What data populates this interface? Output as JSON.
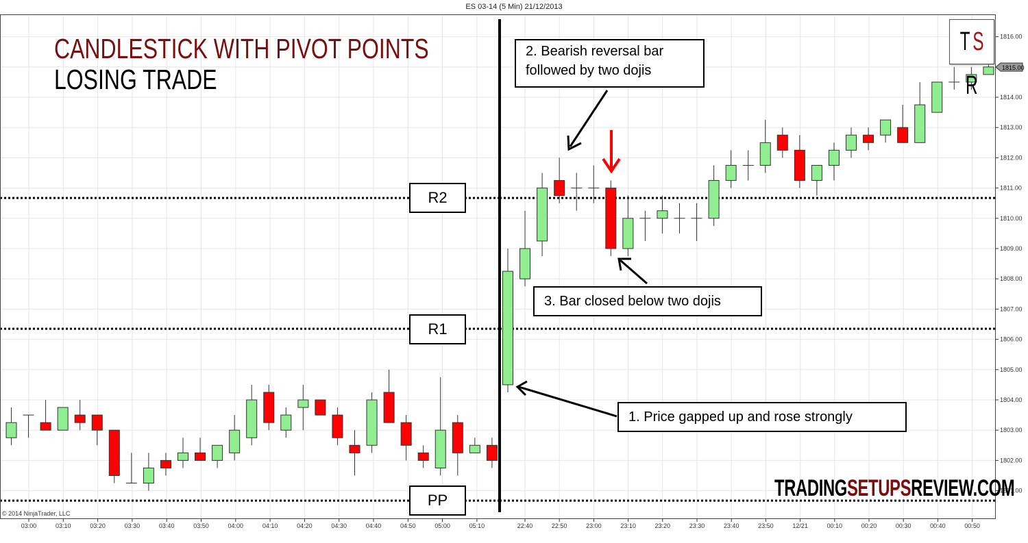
{
  "window": {
    "title": "ES 03-14 (5 Min)  21/12/2013"
  },
  "headline": {
    "line1": "CANDLESTICK WITH PIVOT POINTS",
    "line2": "LOSING TRADE"
  },
  "logo": {
    "t": "T",
    "s": "S",
    "r": "R"
  },
  "brand": {
    "part1": "TRADING",
    "part2": "SETUPS",
    "part3": "REVIEW.COM"
  },
  "copyright": "© 2014 NinjaTrader, LLC",
  "colors": {
    "up": "#90ee90",
    "down": "#ff0000",
    "accent": "#7a0d0d",
    "grid": "#e6e6e6"
  },
  "annotations": {
    "note1": "1. Price gapped up and rose strongly",
    "note2_line1": "2. Bearish reversal bar",
    "note2_line2": "followed by two dojis",
    "note3": "3. Bar closed below two dojis"
  },
  "levels": {
    "r2_label": "R2",
    "r1_label": "R1",
    "pp_label": "PP"
  },
  "chart_data": {
    "type": "candlestick",
    "title": "ES 03-14 (5 Min)  21/12/2013",
    "subtitle": "CANDLESTICK WITH PIVOT POINTS — LOSING TRADE",
    "xlabel": "",
    "ylabel": "",
    "ylim": [
      1800.2,
      1816.6
    ],
    "y_ticks": [
      1801,
      1802,
      1803,
      1804,
      1805,
      1806,
      1807,
      1808,
      1809,
      1810,
      1811,
      1812,
      1813,
      1814,
      1815,
      1816
    ],
    "x_ticks_session1": [
      "03:00",
      "03:10",
      "03:20",
      "03:30",
      "03:40",
      "03:50",
      "04:00",
      "04:10",
      "04:20",
      "04:30",
      "04:40",
      "04:50",
      "05:00",
      "05:10"
    ],
    "x_ticks_session2": [
      "22:40",
      "22:50",
      "23:00",
      "23:10",
      "23:20",
      "23:30",
      "23:40",
      "23:50",
      "12/21",
      "00:10",
      "00:20",
      "00:30",
      "00:40",
      "00:50"
    ],
    "last_price": "1815.00",
    "grid": true,
    "pivot_levels": {
      "R2": 1810.67,
      "R1": 1806.35,
      "PP": 1800.67
    },
    "session1": [
      [
        1802.75,
        1803.75,
        1802.5,
        1803.25
      ],
      [
        1803.5,
        1803.5,
        1802.75,
        1803.5
      ],
      [
        1803.25,
        1804.0,
        1803.0,
        1803.0
      ],
      [
        1803.0,
        1803.75,
        1803.0,
        1803.75
      ],
      [
        1803.5,
        1804.0,
        1803.0,
        1803.25
      ],
      [
        1803.5,
        1803.5,
        1802.5,
        1803.0
      ],
      [
        1803.0,
        1803.0,
        1801.25,
        1801.5
      ],
      [
        1801.25,
        1802.25,
        1801.25,
        1801.25
      ],
      [
        1801.25,
        1802.25,
        1801.0,
        1801.75
      ],
      [
        1802.0,
        1802.25,
        1801.5,
        1801.75
      ],
      [
        1802.0,
        1802.75,
        1801.75,
        1802.25
      ],
      [
        1802.25,
        1802.75,
        1802.0,
        1802.0
      ],
      [
        1802.0,
        1802.5,
        1801.75,
        1802.5
      ],
      [
        1802.25,
        1803.5,
        1802.0,
        1803.0
      ],
      [
        1802.75,
        1804.5,
        1802.5,
        1804.0
      ],
      [
        1804.25,
        1804.5,
        1803.0,
        1803.25
      ],
      [
        1803.0,
        1803.75,
        1802.75,
        1803.5
      ],
      [
        1803.75,
        1804.5,
        1803.0,
        1804.0
      ],
      [
        1804.0,
        1804.0,
        1803.5,
        1803.5
      ],
      [
        1803.5,
        1803.75,
        1802.5,
        1802.75
      ],
      [
        1802.5,
        1803.0,
        1801.5,
        1802.25
      ],
      [
        1802.5,
        1804.25,
        1802.25,
        1804.0
      ],
      [
        1804.25,
        1805.0,
        1803.25,
        1803.25
      ],
      [
        1803.25,
        1803.5,
        1802.0,
        1802.5
      ],
      [
        1802.25,
        1802.5,
        1801.75,
        1802.0
      ],
      [
        1801.75,
        1804.75,
        1801.5,
        1803.0
      ],
      [
        1803.25,
        1803.5,
        1801.5,
        1802.25
      ],
      [
        1802.25,
        1802.75,
        1802.25,
        1802.5
      ],
      [
        1802.5,
        1802.75,
        1801.75,
        1802.0
      ]
    ],
    "session2": [
      [
        1804.5,
        1809.0,
        1804.25,
        1808.25
      ],
      [
        1808.0,
        1810.25,
        1807.75,
        1809.0
      ],
      [
        1809.25,
        1811.5,
        1808.75,
        1811.0
      ],
      [
        1811.25,
        1812.0,
        1810.5,
        1810.75
      ],
      [
        1811.0,
        1811.5,
        1810.25,
        1811.0
      ],
      [
        1811.0,
        1811.75,
        1810.5,
        1811.0
      ],
      [
        1811.0,
        1811.25,
        1808.75,
        1809.0
      ],
      [
        1809.0,
        1810.75,
        1808.75,
        1810.0
      ],
      [
        1810.0,
        1810.25,
        1809.25,
        1810.0
      ],
      [
        1810.0,
        1810.75,
        1809.5,
        1810.25
      ],
      [
        1810.0,
        1810.5,
        1809.5,
        1810.0
      ],
      [
        1810.0,
        1810.5,
        1809.25,
        1810.0
      ],
      [
        1810.0,
        1811.75,
        1809.75,
        1811.25
      ],
      [
        1811.25,
        1812.25,
        1811.0,
        1811.75
      ],
      [
        1811.75,
        1812.25,
        1811.25,
        1811.75
      ],
      [
        1811.75,
        1813.25,
        1811.5,
        1812.5
      ],
      [
        1812.75,
        1813.0,
        1812.0,
        1812.25
      ],
      [
        1812.25,
        1812.75,
        1811.0,
        1811.25
      ],
      [
        1811.25,
        1811.75,
        1810.75,
        1811.75
      ],
      [
        1811.75,
        1812.5,
        1811.25,
        1812.25
      ],
      [
        1812.25,
        1813.0,
        1812.0,
        1812.75
      ],
      [
        1812.75,
        1813.0,
        1812.25,
        1812.5
      ],
      [
        1812.75,
        1813.25,
        1812.5,
        1813.25
      ],
      [
        1813.0,
        1813.75,
        1812.5,
        1812.5
      ],
      [
        1812.5,
        1814.5,
        1812.5,
        1813.75
      ],
      [
        1813.5,
        1814.5,
        1813.5,
        1814.5
      ],
      [
        1814.5,
        1815.0,
        1814.25,
        1814.5
      ],
      [
        1814.5,
        1815.0,
        1814.25,
        1814.75
      ],
      [
        1814.75,
        1815.1,
        1814.75,
        1815.0
      ]
    ],
    "ohlc_format": [
      "open",
      "high",
      "low",
      "close"
    ]
  }
}
